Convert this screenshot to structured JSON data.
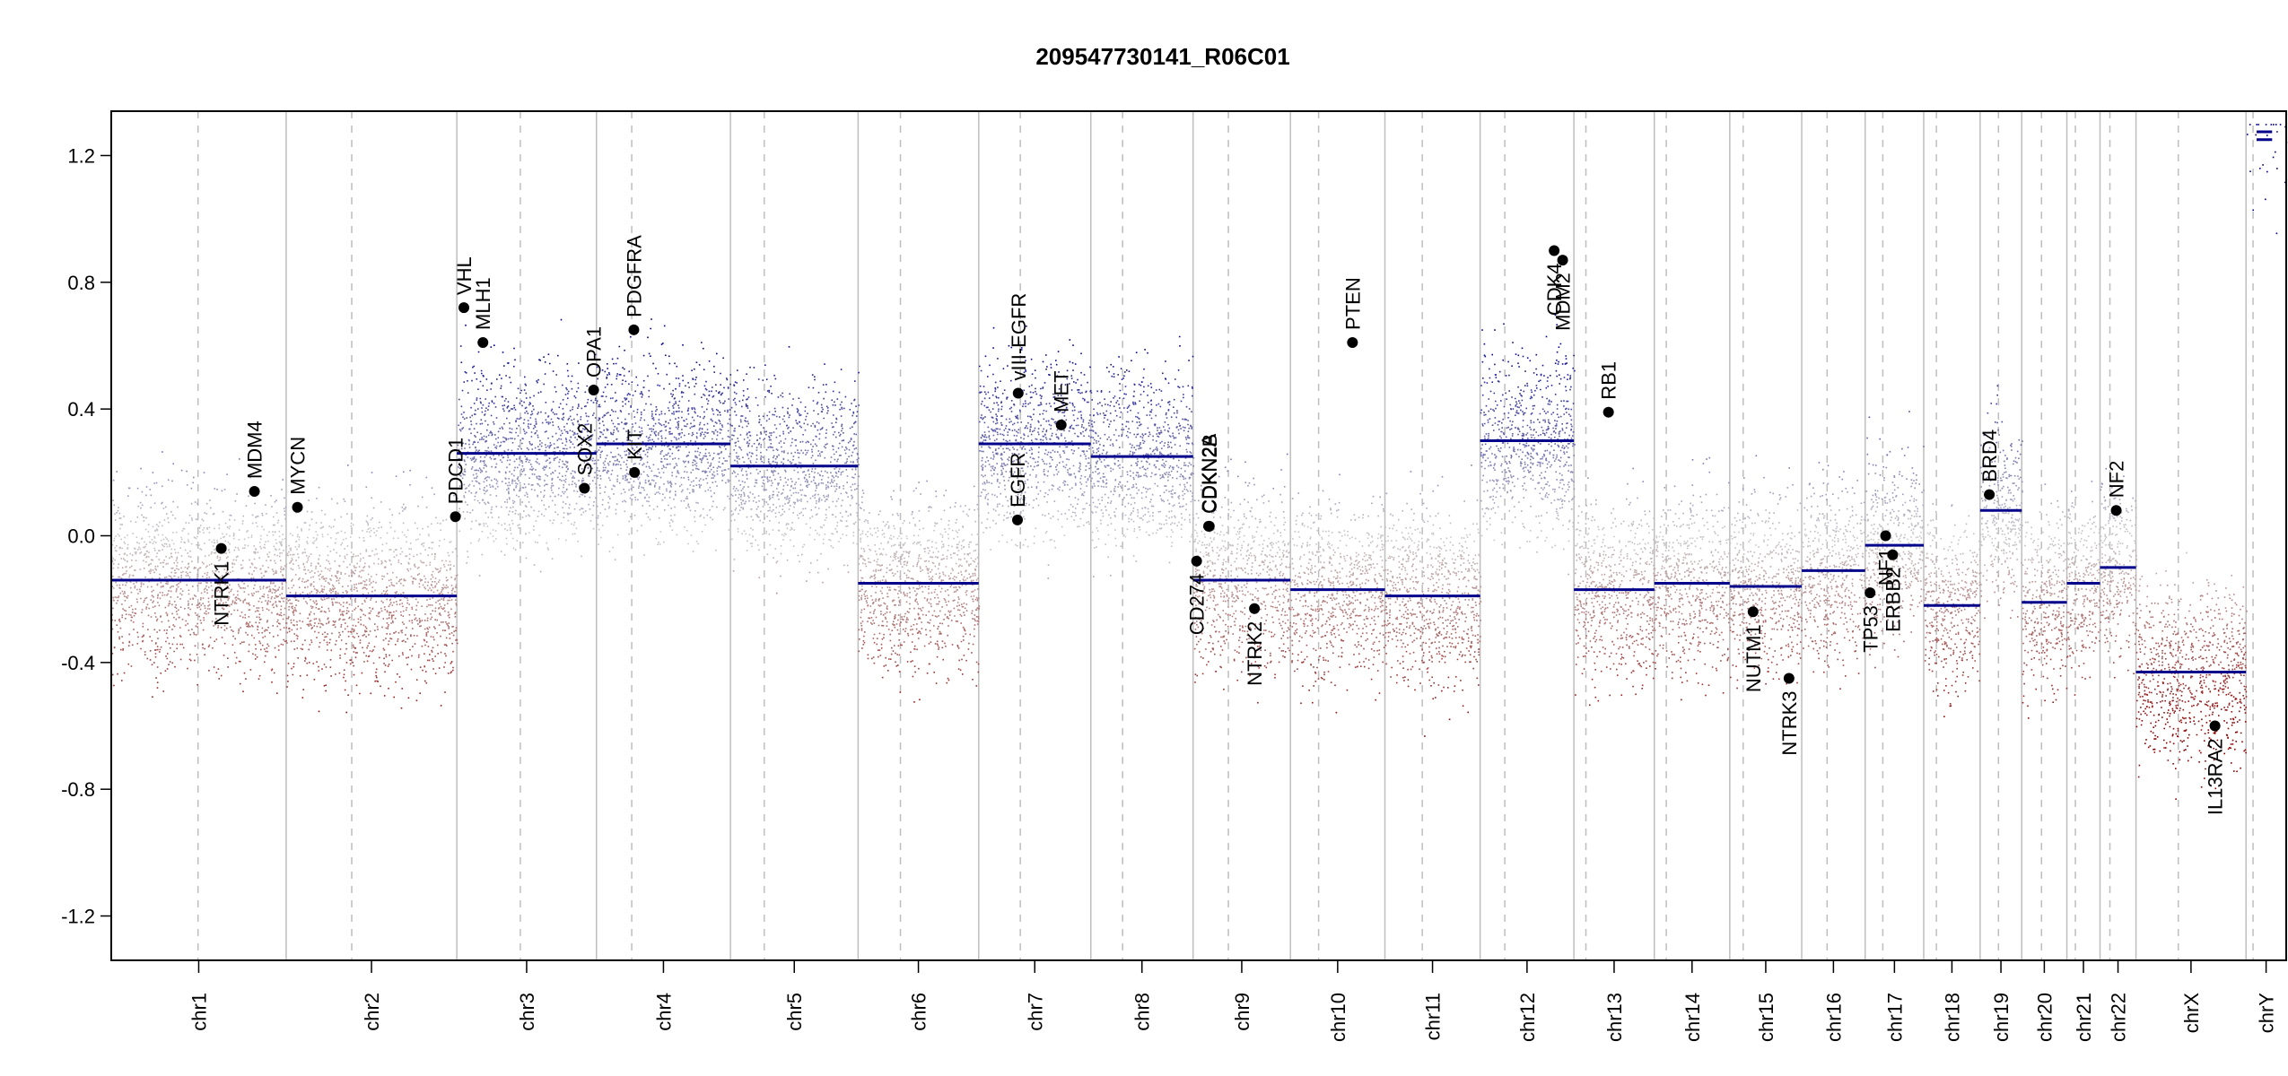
{
  "chart_data": {
    "type": "scatter",
    "title": "209547730141_R06C01",
    "xlabel": "",
    "ylabel": "",
    "ylim": [
      -1.34,
      1.34
    ],
    "y_ticks": [
      -1.2,
      -0.8,
      -0.4,
      0.0,
      0.4,
      0.8,
      1.2
    ],
    "y_tick_labels": [
      "-1.2",
      "-0.8",
      "-0.4",
      "0.0",
      "0.4",
      "0.8",
      "1.2"
    ],
    "grid": "chromosome boundaries and centromeres",
    "colors": {
      "gain": "#00008B",
      "loss": "#8B0000",
      "neutral": "#C8C8C8",
      "segment": "#00008B",
      "boundary": "#BEBEBE"
    },
    "chromosomes": [
      {
        "name": "chr1",
        "start": 0,
        "end": 248,
        "centromere": 123,
        "segment": -0.14
      },
      {
        "name": "chr2",
        "start": 248,
        "end": 490,
        "centromere": 341,
        "segment": -0.19
      },
      {
        "name": "chr3",
        "start": 490,
        "end": 688,
        "centromere": 580,
        "segment": 0.26
      },
      {
        "name": "chr4",
        "start": 688,
        "end": 878,
        "centromere": 738,
        "segment": 0.29
      },
      {
        "name": "chr5",
        "start": 878,
        "end": 1059,
        "centromere": 926,
        "segment": 0.22
      },
      {
        "name": "chr6",
        "start": 1059,
        "end": 1230,
        "centromere": 1119,
        "segment": -0.15
      },
      {
        "name": "chr7",
        "start": 1230,
        "end": 1389,
        "centromere": 1289,
        "segment": 0.29
      },
      {
        "name": "chr8",
        "start": 1389,
        "end": 1534,
        "centromere": 1434,
        "segment": 0.25
      },
      {
        "name": "chr9",
        "start": 1534,
        "end": 1672,
        "centromere": 1584,
        "segment": -0.14
      },
      {
        "name": "chr10",
        "start": 1672,
        "end": 1806,
        "centromere": 1712,
        "segment": -0.17
      },
      {
        "name": "chr11",
        "start": 1806,
        "end": 1941,
        "centromere": 1859,
        "segment": -0.19
      },
      {
        "name": "chr12",
        "start": 1941,
        "end": 2074,
        "centromere": 1976,
        "segment": 0.3
      },
      {
        "name": "chr13",
        "start": 2074,
        "end": 2188,
        "centromere": 2091,
        "segment": -0.17
      },
      {
        "name": "chr14",
        "start": 2188,
        "end": 2295,
        "centromere": 2205,
        "segment": -0.15
      },
      {
        "name": "chr15",
        "start": 2295,
        "end": 2397,
        "centromere": 2314,
        "segment": -0.16
      },
      {
        "name": "chr16",
        "start": 2397,
        "end": 2487,
        "centromere": 2433,
        "segment": -0.11
      },
      {
        "name": "chr17",
        "start": 2487,
        "end": 2570,
        "centromere": 2512,
        "segment": -0.03
      },
      {
        "name": "chr18",
        "start": 2570,
        "end": 2650,
        "centromere": 2588,
        "segment": -0.22
      },
      {
        "name": "chr19",
        "start": 2650,
        "end": 2709,
        "centromere": 2676,
        "segment": 0.08
      },
      {
        "name": "chr20",
        "start": 2709,
        "end": 2773,
        "centromere": 2737,
        "segment": -0.21
      },
      {
        "name": "chr21",
        "start": 2773,
        "end": 2820,
        "centromere": 2785,
        "segment": -0.15
      },
      {
        "name": "chr22",
        "start": 2820,
        "end": 2871,
        "centromere": 2834,
        "segment": -0.1
      },
      {
        "name": "chrX",
        "start": 2871,
        "end": 3027,
        "centromere": 2931,
        "segment": -0.43
      },
      {
        "name": "chrY",
        "start": 3027,
        "end": 3084,
        "centromere": 3037,
        "segment": 1.26
      }
    ],
    "genes": [
      {
        "name": "NTRK1",
        "x": 156,
        "y": -0.04,
        "label_side": "below"
      },
      {
        "name": "MDM4",
        "x": 203,
        "y": 0.14,
        "label_side": "above"
      },
      {
        "name": "MYCN",
        "x": 264,
        "y": 0.09,
        "label_side": "above"
      },
      {
        "name": "PDCD1",
        "x": 488,
        "y": 0.06,
        "label_side": "above"
      },
      {
        "name": "VHL",
        "x": 500,
        "y": 0.72,
        "label_side": "above"
      },
      {
        "name": "MLH1",
        "x": 527,
        "y": 0.61,
        "label_side": "above"
      },
      {
        "name": "SOX2",
        "x": 671,
        "y": 0.15,
        "label_side": "above"
      },
      {
        "name": "OPA1",
        "x": 684,
        "y": 0.46,
        "label_side": "above"
      },
      {
        "name": "KIT",
        "x": 742,
        "y": 0.2,
        "label_side": "above"
      },
      {
        "name": "PDGFRA",
        "x": 741,
        "y": 0.65,
        "label_side": "above"
      },
      {
        "name": "EGFR",
        "x": 1285,
        "y": 0.05,
        "label_side": "above"
      },
      {
        "name": "vIII-EGFR",
        "x": 1286,
        "y": 0.45,
        "label_side": "above"
      },
      {
        "name": "MET",
        "x": 1347,
        "y": 0.35,
        "label_side": "above"
      },
      {
        "name": "CD274",
        "x": 1539,
        "y": -0.08,
        "label_side": "below"
      },
      {
        "name": "CDKN2A",
        "x": 1556,
        "y": 0.03,
        "label_side": "above"
      },
      {
        "name": "CDKN2B",
        "x": 1557,
        "y": 0.03,
        "label_side": "above"
      },
      {
        "name": "NTRK2",
        "x": 1621,
        "y": -0.23,
        "label_side": "below"
      },
      {
        "name": "PTEN",
        "x": 1760,
        "y": 0.61,
        "label_side": "above"
      },
      {
        "name": "CDK4",
        "x": 2046,
        "y": 0.9,
        "label_side": "below"
      },
      {
        "name": "MDM2",
        "x": 2058,
        "y": 0.87,
        "label_side": "below"
      },
      {
        "name": "RB1",
        "x": 2123,
        "y": 0.39,
        "label_side": "above"
      },
      {
        "name": "NUTM1",
        "x": 2328,
        "y": -0.24,
        "label_side": "below"
      },
      {
        "name": "NTRK3",
        "x": 2379,
        "y": -0.45,
        "label_side": "below"
      },
      {
        "name": "TP53",
        "x": 2494,
        "y": -0.18,
        "label_side": "below"
      },
      {
        "name": "NF1",
        "x": 2516,
        "y": 0.0,
        "label_side": "below"
      },
      {
        "name": "ERBB2",
        "x": 2526,
        "y": -0.06,
        "label_side": "below"
      },
      {
        "name": "BRD4",
        "x": 2663,
        "y": 0.13,
        "label_side": "above"
      },
      {
        "name": "NF2",
        "x": 2843,
        "y": 0.08,
        "label_side": "above"
      },
      {
        "name": "IL13RA2",
        "x": 2983,
        "y": -0.6,
        "label_side": "below"
      }
    ]
  }
}
